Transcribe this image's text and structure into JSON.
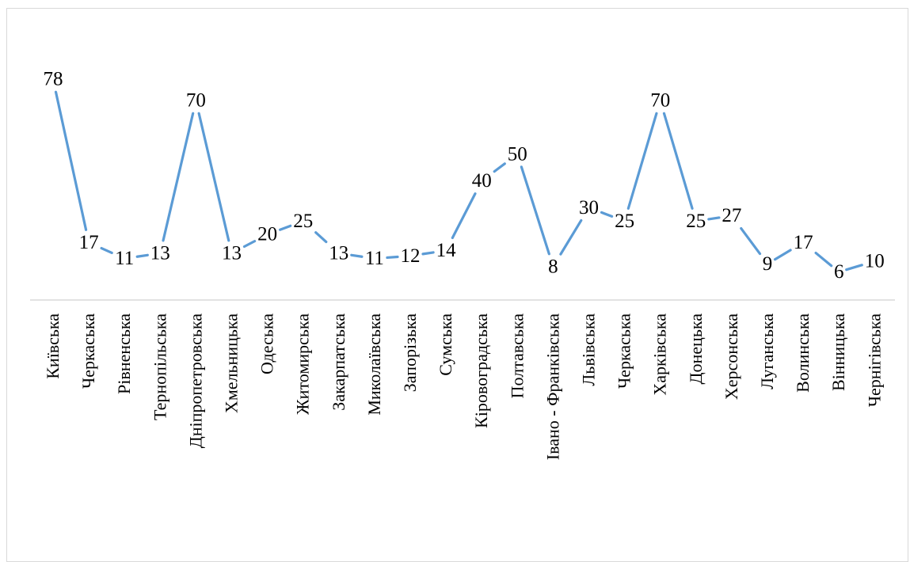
{
  "chart_data": {
    "type": "line",
    "title": "",
    "xlabel": "",
    "ylabel": "",
    "categories": [
      "Київська",
      "Черкаська",
      "Рівненська",
      "Тернопільська",
      "Дніпропетровська",
      "Хмельницька",
      "Одеська",
      "Житомирська",
      "Закарпатська",
      "Миколаївська",
      "Запорізька",
      "Сумська",
      "Кіровоградська",
      "Полтавська",
      "Івано - Франківська",
      "Львівська",
      "Черкаська",
      "Харківська",
      "Донецька",
      "Херсонська",
      "Луганська",
      "Волинська",
      "Вінницька",
      "Чернігівська"
    ],
    "series": [
      {
        "values": [
          78,
          17,
          11,
          13,
          70,
          13,
          20,
          25,
          13,
          11,
          12,
          14,
          40,
          50,
          8,
          30,
          25,
          70,
          25,
          27,
          9,
          17,
          6,
          10
        ]
      }
    ],
    "ylim": [
      0,
      85
    ],
    "grid": false,
    "legend": "none",
    "data_labels": true,
    "colors": {
      "line": "#5b9bd5",
      "axis": "#d9d9d9",
      "text": "#000000"
    }
  }
}
